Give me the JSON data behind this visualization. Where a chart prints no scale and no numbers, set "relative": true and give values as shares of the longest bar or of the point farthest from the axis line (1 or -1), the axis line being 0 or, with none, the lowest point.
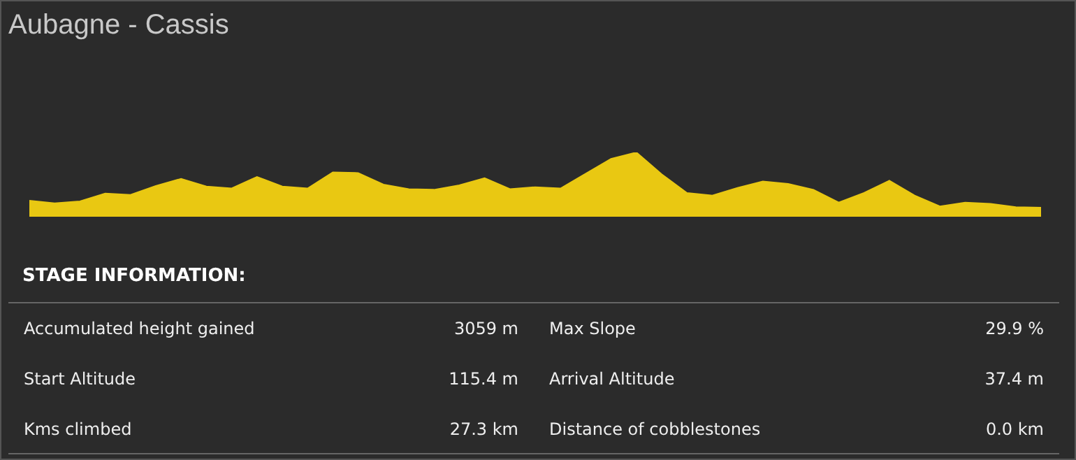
{
  "chart_data": [
    {
      "type": "area",
      "title": "Aubagne - Cassis",
      "relative": true,
      "categories": [
        null,
        null,
        null,
        null,
        null,
        null,
        null,
        null,
        null,
        null,
        null,
        null,
        null,
        null,
        null,
        null,
        null,
        null,
        null,
        null,
        null,
        null,
        null,
        null,
        null,
        null,
        null,
        null,
        null,
        null,
        null,
        null,
        null,
        null,
        null,
        null,
        null,
        null,
        null,
        null,
        null
      ],
      "series": [
        {
          "color": "#e9c812",
          "values": [
            0.25,
            0.21,
            0.24,
            0.36,
            0.34,
            0.48,
            0.59,
            0.47,
            0.44,
            0.62,
            0.47,
            0.44,
            0.69,
            0.68,
            0.5,
            0.43,
            0.42,
            0.49,
            0.6,
            0.43,
            0.46,
            0.44,
            0.67,
            0.9,
            1,
            0.66,
            0.37,
            0.33,
            0.45,
            0.55,
            0.51,
            0.42,
            0.22,
            0.37,
            0.56,
            0.33,
            0.16,
            0.22,
            0.2,
            0.15,
            0.14
          ]
        }
      ],
      "legend": false
    },
    {
      "type": "other",
      "title": "STAGE INFORMATION:",
      "annotations": [
        "Accumulated height gained",
        "3059 m",
        "Max Slope",
        "29.9 %",
        "Start Altitude",
        "115.4 m",
        "Arrival Altitude",
        "37.4 m",
        "Kms climbed",
        "27.3 km",
        "Distance of cobblestones",
        "0.0 km"
      ]
    }
  ]
}
